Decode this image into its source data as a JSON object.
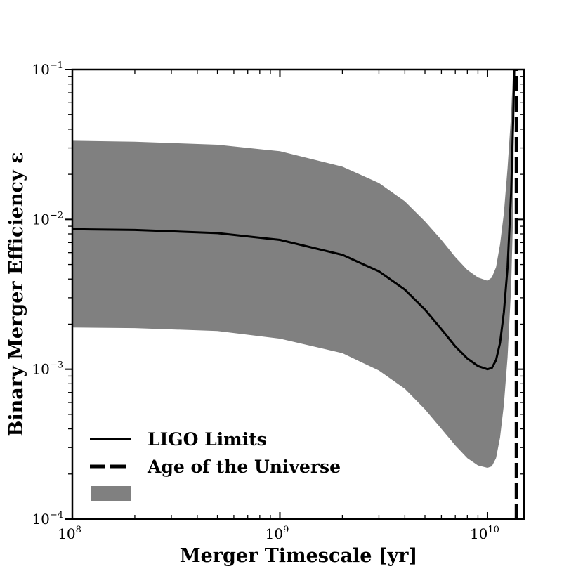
{
  "chart_data": {
    "type": "line",
    "xscale": "log",
    "yscale": "log",
    "xlim": [
      100000000.0,
      15000000000.0
    ],
    "ylim": [
      0.0001,
      0.1
    ],
    "xlabel": "Merger Timescale [yr]",
    "ylabel": "Binary Merger Efficiency ε",
    "x_ticks": [
      {
        "value": 100000000.0,
        "base": "10",
        "exp": "8"
      },
      {
        "value": 1000000000.0,
        "base": "10",
        "exp": "9"
      },
      {
        "value": 10000000000.0,
        "base": "10",
        "exp": "10"
      }
    ],
    "y_ticks": [
      {
        "value": 0.0001,
        "base": "10",
        "exp": "−4"
      },
      {
        "value": 0.001,
        "base": "10",
        "exp": "−3"
      },
      {
        "value": 0.01,
        "base": "10",
        "exp": "−2"
      },
      {
        "value": 0.1,
        "base": "10",
        "exp": "−1"
      }
    ],
    "series": [
      {
        "name": "LIGO Limits",
        "style": "solid",
        "color": "#000000",
        "x": [
          100000000.0,
          200000000.0,
          500000000.0,
          1000000000.0,
          2000000000.0,
          3000000000.0,
          4000000000.0,
          5000000000.0,
          6000000000.0,
          7000000000.0,
          8000000000.0,
          9000000000.0,
          10000000000.0,
          10500000000.0,
          11000000000.0,
          11500000000.0,
          12000000000.0,
          12500000000.0,
          13000000000.0,
          13300000000.0,
          13500000000.0
        ],
        "y": [
          0.0086,
          0.0085,
          0.0081,
          0.0073,
          0.0058,
          0.0045,
          0.0034,
          0.0025,
          0.00185,
          0.00142,
          0.00118,
          0.00105,
          0.001,
          0.00102,
          0.00115,
          0.0015,
          0.0024,
          0.0048,
          0.015,
          0.045,
          0.12
        ]
      }
    ],
    "band": {
      "name": "",
      "color": "#808080",
      "x": [
        100000000.0,
        200000000.0,
        500000000.0,
        1000000000.0,
        2000000000.0,
        3000000000.0,
        4000000000.0,
        5000000000.0,
        6000000000.0,
        7000000000.0,
        8000000000.0,
        9000000000.0,
        10000000000.0,
        10500000000.0,
        11000000000.0,
        11500000000.0,
        12000000000.0,
        12500000000.0,
        13000000000.0,
        13300000000.0,
        13500000000.0
      ],
      "upper": [
        0.0335,
        0.033,
        0.0315,
        0.0285,
        0.0225,
        0.0175,
        0.0132,
        0.0097,
        0.0073,
        0.0056,
        0.0046,
        0.0041,
        0.0039,
        0.0041,
        0.0048,
        0.0068,
        0.011,
        0.022,
        0.05,
        0.1,
        0.12
      ],
      "lower": [
        0.0019,
        0.00188,
        0.0018,
        0.0016,
        0.00128,
        0.00098,
        0.00074,
        0.00054,
        0.0004,
        0.00031,
        0.000255,
        0.000228,
        0.00022,
        0.000225,
        0.000255,
        0.00035,
        0.00058,
        0.0012,
        0.0035,
        0.011,
        0.12
      ]
    },
    "vline": {
      "name": "Age of the Universe",
      "x": 13800000000.0,
      "style": "dashed",
      "color": "#000000"
    },
    "legend": {
      "position": "lower-left",
      "entries": [
        {
          "label": "LIGO Limits",
          "kind": "line-solid"
        },
        {
          "label": "Age of the Universe",
          "kind": "line-dashed"
        },
        {
          "label": "",
          "kind": "patch"
        }
      ]
    }
  }
}
